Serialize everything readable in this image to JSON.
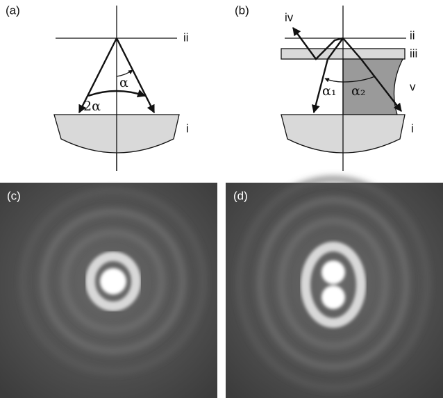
{
  "panels": [
    {
      "label": "(a)",
      "annotations": {
        "plane": "ii",
        "half_angle": "α",
        "full_angle": "2α",
        "lens": "i"
      }
    },
    {
      "label": "(b)",
      "annotations": {
        "reflected": "iv",
        "plane": "ii",
        "slide": "iii",
        "medium": "v",
        "angle_1": "α₁",
        "angle_2": "α₂",
        "lens": "i"
      }
    },
    {
      "label": "(c)"
    },
    {
      "label": "(d)"
    }
  ]
}
